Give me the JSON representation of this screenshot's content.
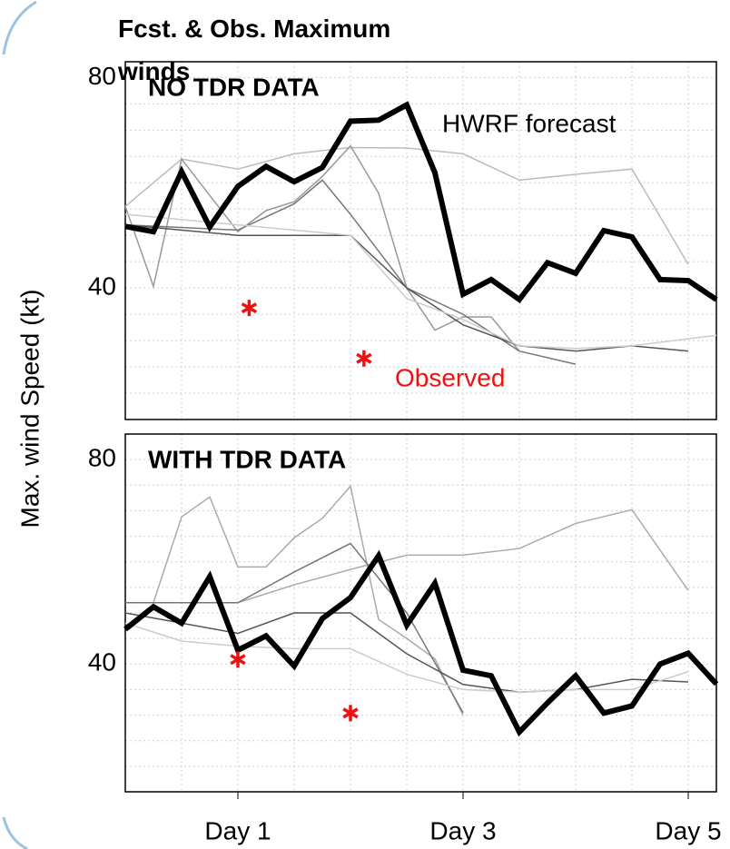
{
  "figure": {
    "title": "Fcst. & Obs. Maximum winds",
    "ylabel": "Max. wind Speed (kt)"
  },
  "chart_data": [
    {
      "type": "line",
      "title": "NO TDR DATA",
      "xlim": [
        0,
        5.25
      ],
      "ylim": [
        15,
        83
      ],
      "yticks": [
        40,
        80
      ],
      "yminorticks": [
        20,
        25,
        30,
        35,
        45,
        50,
        55,
        60,
        65,
        70,
        75
      ],
      "xminorticks": [
        0.5,
        1,
        1.5,
        2,
        2.5,
        3,
        3.5,
        4,
        4.5,
        5
      ],
      "grid": true,
      "series": [
        {
          "color": "#bbbbbb",
          "x": [
            0,
            0.5,
            1,
            1.5,
            2,
            2.5,
            3,
            3.5,
            4,
            4.5,
            5
          ],
          "values": [
            55.5,
            64.5,
            62.6,
            65.5,
            66.7,
            66.6,
            65.5,
            60.5,
            61.6,
            62.6,
            44.5
          ]
        },
        {
          "color": "#999999",
          "x": [
            0,
            0.25,
            0.5,
            0.75,
            1,
            1.25,
            1.5,
            1.75,
            2,
            2.25,
            2.5,
            2.75,
            3,
            3.25,
            3.5
          ],
          "values": [
            55.5,
            40.3,
            64.5,
            57.6,
            50.7,
            54.7,
            56.4,
            61.2,
            67,
            58,
            40,
            32,
            34.5,
            34.5,
            28
          ]
        },
        {
          "color": "#777777",
          "x": [
            0,
            1,
            1.5,
            1.75,
            2,
            2.5,
            3,
            3.5,
            4
          ],
          "values": [
            52,
            51,
            56,
            60.5,
            54,
            40,
            35,
            28,
            25.5
          ]
        },
        {
          "color": "#555555",
          "x": [
            0,
            1,
            2,
            2.5,
            3,
            3.5,
            4,
            4.5,
            5
          ],
          "values": [
            52,
            50,
            50,
            40,
            33,
            29,
            28,
            29,
            28
          ]
        },
        {
          "color": "#cccccc",
          "x": [
            0,
            2,
            2.5,
            3,
            3.5,
            4,
            4.5,
            5.25
          ],
          "values": [
            54,
            50,
            38,
            34,
            29,
            28.5,
            29,
            31
          ]
        },
        {
          "name": "HWRF forecast",
          "color": "#000000",
          "width": 6,
          "x": [
            0,
            0.25,
            0.5,
            0.75,
            1,
            1.25,
            1.5,
            1.75,
            2,
            2.25,
            2.5,
            2.75,
            3,
            3.25,
            3.5,
            3.75,
            4,
            4.25,
            4.5,
            4.75,
            5,
            5.25
          ],
          "values": [
            51.7,
            50.7,
            62.1,
            51.6,
            59.3,
            63.1,
            60.2,
            62.9,
            71.7,
            71.9,
            74.8,
            61.9,
            38.8,
            41.6,
            37.8,
            44.8,
            42.8,
            50.9,
            49.7,
            41.6,
            41.4,
            37.8
          ]
        },
        {
          "name": "Observed",
          "color": "#ee1111",
          "marker": "asterisk",
          "x": [
            1.1,
            2.12
          ],
          "values": [
            36.2,
            26.6
          ]
        }
      ]
    },
    {
      "type": "line",
      "title": "WITH TDR DATA",
      "xlim": [
        0,
        5.25
      ],
      "ylim": [
        15,
        85
      ],
      "yticks": [
        40,
        80
      ],
      "yminorticks": [
        20,
        25,
        30,
        35,
        45,
        50,
        55,
        60,
        65,
        70,
        75
      ],
      "xminorticks": [
        0.5,
        1,
        1.5,
        2,
        2.5,
        3,
        3.5,
        4,
        4.5,
        5
      ],
      "grid": true,
      "xticks": [
        {
          "value": 1,
          "label": "Day 1"
        },
        {
          "value": 3,
          "label": "Day 3"
        },
        {
          "value": 5,
          "label": "Day 5"
        }
      ],
      "series": [
        {
          "color": "#aaaaaa",
          "x": [
            0,
            0.25,
            0.5,
            0.75,
            1,
            1.25,
            1.5,
            1.75,
            2,
            2.25,
            2.5,
            2.75,
            3
          ],
          "values": [
            52,
            52,
            68.8,
            72.7,
            59,
            59,
            64.7,
            68.5,
            74.8,
            48.7,
            45,
            41,
            30
          ]
        },
        {
          "color": "#aaaaaa",
          "x": [
            0,
            1,
            1.5,
            2,
            2.5,
            3,
            3.5,
            4,
            4.5,
            5
          ],
          "values": [
            52,
            52,
            55.5,
            58.5,
            61.3,
            61.3,
            62.6,
            67.5,
            70.2,
            54.4
          ]
        },
        {
          "color": "#777777",
          "x": [
            0,
            1,
            1.5,
            2,
            2.5,
            3
          ],
          "values": [
            52,
            52,
            58,
            63.6,
            50,
            30.5
          ]
        },
        {
          "color": "#555555",
          "x": [
            0,
            1,
            1.5,
            2,
            2.5,
            3,
            3.5,
            4,
            4.5,
            5
          ],
          "values": [
            50,
            46,
            50,
            50,
            42,
            36,
            34.5,
            35,
            37,
            36.5
          ]
        },
        {
          "color": "#cccccc",
          "x": [
            0,
            0.5,
            1,
            1.5,
            2,
            2.5,
            3,
            3.5,
            4,
            4.5,
            5
          ],
          "values": [
            48,
            44.5,
            43.5,
            43,
            43,
            38,
            35,
            34.5,
            35,
            35,
            38.5
          ]
        },
        {
          "color": "#000000",
          "width": 6,
          "x": [
            0,
            0.25,
            0.5,
            0.75,
            1,
            1.25,
            1.5,
            1.75,
            2,
            2.25,
            2.5,
            2.75,
            3,
            3.25,
            3.5,
            3.75,
            4,
            4.25,
            4.5,
            4.75,
            5,
            5.25
          ],
          "values": [
            46.8,
            51.2,
            48.0,
            57.1,
            42.7,
            45.5,
            39.6,
            48.9,
            53.0,
            61.2,
            47.6,
            55.8,
            38.8,
            37.7,
            26.7,
            32.4,
            37.7,
            30.4,
            31.8,
            40.0,
            42.1,
            36.1
          ]
        },
        {
          "color": "#ee1111",
          "marker": "asterisk",
          "x": [
            1.0,
            2.0
          ],
          "values": [
            40.9,
            30.4
          ]
        }
      ]
    }
  ]
}
